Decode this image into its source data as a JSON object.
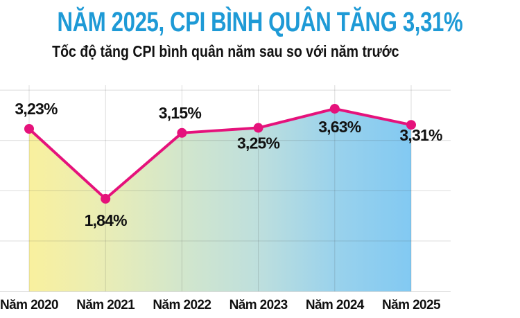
{
  "chart_data": {
    "type": "area",
    "title": "NĂM 2025, CPI BÌNH QUÂN TĂNG 3,31%",
    "subtitle": "Tốc độ tăng CPI bình quân năm sau so với năm trước",
    "categories": [
      "Năm 2020",
      "Năm 2021",
      "Năm 2022",
      "Năm 2023",
      "Năm 2024",
      "Năm 2025"
    ],
    "values": [
      3.23,
      1.84,
      3.15,
      3.25,
      3.63,
      3.31
    ],
    "point_labels": [
      "3,23%",
      "1,84%",
      "3,15%",
      "3,25%",
      "3,63%",
      "3,31%"
    ],
    "xlabel": "",
    "ylabel": "",
    "ylim": [
      0,
      4.2
    ],
    "grid": "on",
    "grid_values": [
      0,
      1,
      2,
      3,
      4
    ],
    "legend": "none",
    "colors": {
      "title": "#1e9ad6",
      "subtitle": "#121212",
      "line": "#e5127b",
      "marker": "#e5127b",
      "grid": "rgba(60,60,60,0.18)",
      "label": "#111111",
      "area_gradient": [
        "#f9f09e",
        "#e9edb6",
        "#d2e6cc",
        "#bedfdd",
        "#9ad2ec",
        "#82c9f2"
      ]
    }
  }
}
